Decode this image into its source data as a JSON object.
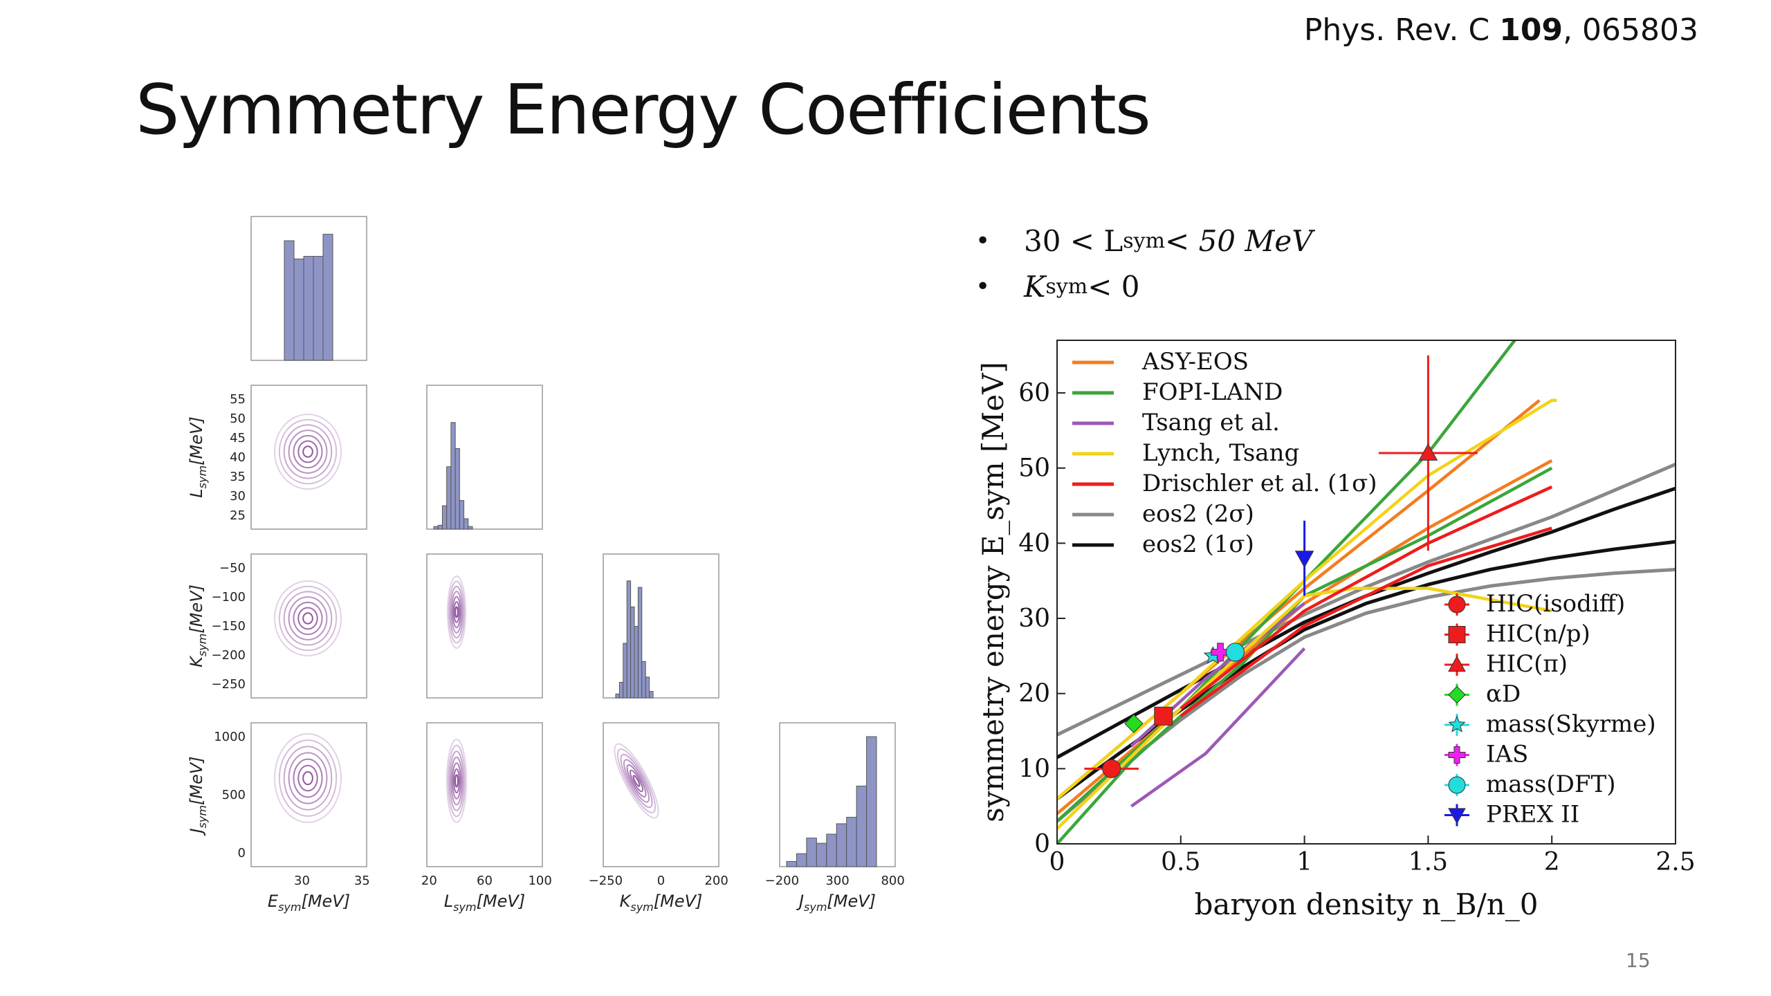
{
  "citation": {
    "prefix": "Phys. Rev. C ",
    "volume": "109",
    "suffix": ", 065803"
  },
  "title": "Symmetry Energy Coefficients",
  "bullets": [
    {
      "pre": "30 <  L",
      "sub": "sym",
      "post": "< 50 MeV"
    },
    {
      "pre": "K",
      "sub": "sym",
      "post": " < 0"
    }
  ],
  "page_number": "15",
  "colors": {
    "hist": "#8e95c6",
    "contour": "#8a4a9a"
  },
  "corner": {
    "hist_esym": [
      0.92,
      0.78,
      0.8,
      0.8,
      0.97
    ],
    "hist_lsym": [
      0.02,
      0.03,
      0.18,
      0.48,
      0.82,
      0.62,
      0.22,
      0.08,
      0.02
    ],
    "hist_ksym": [
      0.03,
      0.12,
      0.42,
      0.9,
      0.7,
      0.55,
      0.85,
      0.28,
      0.16,
      0.05
    ],
    "hist_jsym": [
      0.04,
      0.1,
      0.22,
      0.18,
      0.25,
      0.33,
      0.38,
      0.62,
      1.0
    ],
    "e_axis": {
      "ticks": [
        "30",
        "35"
      ],
      "label_main": "E",
      "label_sub": "sym",
      "label_unit": "[MeV]"
    },
    "l_axis": {
      "ticks": [
        "20",
        "60",
        "100"
      ],
      "label_main": "L",
      "label_sub": "sym",
      "label_unit": "[MeV]",
      "yticks": [
        "55",
        "50",
        "45",
        "40",
        "35",
        "30",
        "25"
      ]
    },
    "k_axis": {
      "ticks": [
        "−250",
        "0",
        "200"
      ],
      "label_main": "K",
      "label_sub": "sym",
      "label_unit": "[MeV]",
      "yticks": [
        "−50",
        "−100",
        "−150",
        "−200",
        "−250"
      ]
    },
    "j_axis": {
      "ticks": [
        "−200",
        "300",
        "800"
      ],
      "label_main": "J",
      "label_sub": "sym",
      "label_unit": "[MeV]",
      "yticks": [
        "1000",
        "500",
        "0"
      ]
    }
  },
  "chart_data": {
    "type": "line",
    "title": "",
    "xlabel": "baryon density n_B/n_0",
    "ylabel": "symmetry energy E_sym [MeV]",
    "xlim": [
      0,
      2.5
    ],
    "ylim": [
      0,
      67
    ],
    "xticks": [
      "0",
      "0.5",
      "1",
      "1.5",
      "2",
      "2.5"
    ],
    "yticks": [
      "0",
      "10",
      "20",
      "30",
      "40",
      "50",
      "60"
    ],
    "legend_lines": [
      {
        "name": "ASY-EOS",
        "color": "#f47c20"
      },
      {
        "name": "FOPI-LAND",
        "color": "#3aa63a"
      },
      {
        "name": "Tsang et al.",
        "color": "#9b59b6"
      },
      {
        "name": "Lynch, Tsang",
        "color": "#f2d318"
      },
      {
        "name": "Drischler et al. (1σ)",
        "color": "#ee1c1c"
      },
      {
        "name": "eos2 (2σ)",
        "color": "#888888"
      },
      {
        "name": "eos2 (1σ)",
        "color": "#111111"
      }
    ],
    "legend_points": [
      {
        "name": "HIC(isodiff)",
        "color": "#ee1c1c",
        "marker": "circle"
      },
      {
        "name": "HIC(n/p)",
        "color": "#ee1c1c",
        "marker": "square"
      },
      {
        "name": "HIC(π)",
        "color": "#ee1c1c",
        "marker": "triangle"
      },
      {
        "name": "αD",
        "color": "#22dd22",
        "marker": "diamond"
      },
      {
        "name": "mass(Skyrme)",
        "color": "#22dddd",
        "marker": "star"
      },
      {
        "name": "IAS",
        "color": "#ee22ee",
        "marker": "plus"
      },
      {
        "name": "mass(DFT)",
        "color": "#22dddd",
        "marker": "circle"
      },
      {
        "name": "PREX II",
        "color": "#1a1ae6",
        "marker": "tri-down"
      }
    ],
    "series": [
      {
        "name": "eos2 (2σ) upper",
        "color": "#888888",
        "x": [
          0,
          0.25,
          0.5,
          0.75,
          1,
          1.25,
          1.5,
          1.75,
          2,
          2.25,
          2.5
        ],
        "y": [
          14.5,
          18.5,
          22.5,
          26.5,
          30.5,
          34.2,
          37.5,
          40.5,
          43.5,
          47,
          50.5
        ]
      },
      {
        "name": "eos2 (2σ) lower",
        "color": "#888888",
        "x": [
          0,
          0.25,
          0.5,
          0.75,
          1,
          1.25,
          1.5,
          1.75,
          2,
          2.25,
          2.5
        ],
        "y": [
          3,
          10,
          16.5,
          22.5,
          27.5,
          30.7,
          32.8,
          34.3,
          35.3,
          36,
          36.5
        ]
      },
      {
        "name": "eos2 (1σ) upper",
        "color": "#111111",
        "x": [
          0,
          0.25,
          0.5,
          0.75,
          1,
          1.25,
          1.5,
          1.75,
          2,
          2.25,
          2.5
        ],
        "y": [
          11.5,
          16,
          20.5,
          25,
          29.5,
          33,
          36,
          38.8,
          41.5,
          44.5,
          47.3
        ]
      },
      {
        "name": "eos2 (1σ) lower",
        "color": "#111111",
        "x": [
          0,
          0.25,
          0.5,
          0.75,
          1,
          1.25,
          1.5,
          1.75,
          2,
          2.25,
          2.5
        ],
        "y": [
          6,
          12,
          17.8,
          23.5,
          28.5,
          32,
          34.5,
          36.5,
          38,
          39.2,
          40.2
        ]
      },
      {
        "name": "ASY-EOS upper",
        "color": "#f47c20",
        "x": [
          0,
          0.5,
          1,
          1.5,
          1.95
        ],
        "y": [
          6,
          20,
          34,
          47,
          59
        ]
      },
      {
        "name": "ASY-EOS lower",
        "color": "#f47c20",
        "x": [
          0,
          0.5,
          1,
          1.5,
          2
        ],
        "y": [
          4,
          18,
          32,
          42,
          51
        ]
      },
      {
        "name": "FOPI-LAND upper",
        "color": "#3aa63a",
        "x": [
          0,
          0.5,
          1,
          1.5,
          1.85
        ],
        "y": [
          3,
          18,
          35,
          52,
          67
        ]
      },
      {
        "name": "FOPI-LAND lower",
        "color": "#3aa63a",
        "x": [
          0,
          0.3,
          0.5,
          0.75,
          1,
          1.5,
          2
        ],
        "y": [
          0,
          11,
          17,
          24,
          33,
          41,
          50
        ]
      },
      {
        "name": "Tsang et al. upper",
        "color": "#9b59b6",
        "x": [
          0.3,
          0.6,
          1
        ],
        "y": [
          13,
          22,
          32
        ]
      },
      {
        "name": "Tsang et al. lower",
        "color": "#9b59b6",
        "x": [
          0.3,
          0.6,
          1
        ],
        "y": [
          5,
          12,
          26
        ]
      },
      {
        "name": "Lynch, Tsang upper",
        "color": "#f2d318",
        "x": [
          0,
          0.5,
          1,
          1.5,
          2,
          2.02
        ],
        "y": [
          6,
          20,
          35,
          49,
          59,
          59
        ]
      },
      {
        "name": "Lynch, Tsang lower",
        "color": "#f2d318",
        "x": [
          0,
          0.5,
          1,
          1.2,
          1.5,
          2
        ],
        "y": [
          2,
          18,
          33,
          34,
          34,
          31
        ]
      },
      {
        "name": "Drischler et al. (1σ) upper",
        "color": "#ee1c1c",
        "x": [
          0.5,
          1,
          1.5,
          2
        ],
        "y": [
          18,
          31,
          40,
          47.5
        ]
      },
      {
        "name": "Drischler et al. (1σ) lower",
        "color": "#ee1c1c",
        "x": [
          0.5,
          1,
          1.5,
          2
        ],
        "y": [
          17,
          29,
          37,
          42
        ]
      }
    ],
    "points": [
      {
        "name": "HIC(isodiff)",
        "x": 0.22,
        "y": 10,
        "xerr": 0.11,
        "yerr": 1
      },
      {
        "name": "HIC(n/p)",
        "x": 0.43,
        "y": 17,
        "yerr": 1
      },
      {
        "name": "HIC(π)",
        "x": 1.5,
        "y": 52,
        "xerr": 0.2,
        "yerr": 13
      },
      {
        "name": "αD",
        "x": 0.31,
        "y": 16
      },
      {
        "name": "mass(Skyrme)",
        "x": 0.63,
        "y": 25
      },
      {
        "name": "IAS",
        "x": 0.66,
        "y": 25.5
      },
      {
        "name": "mass(DFT)",
        "x": 0.72,
        "y": 25.5
      },
      {
        "name": "PREX II",
        "x": 1.0,
        "y": 38,
        "yerr": 5
      }
    ]
  }
}
